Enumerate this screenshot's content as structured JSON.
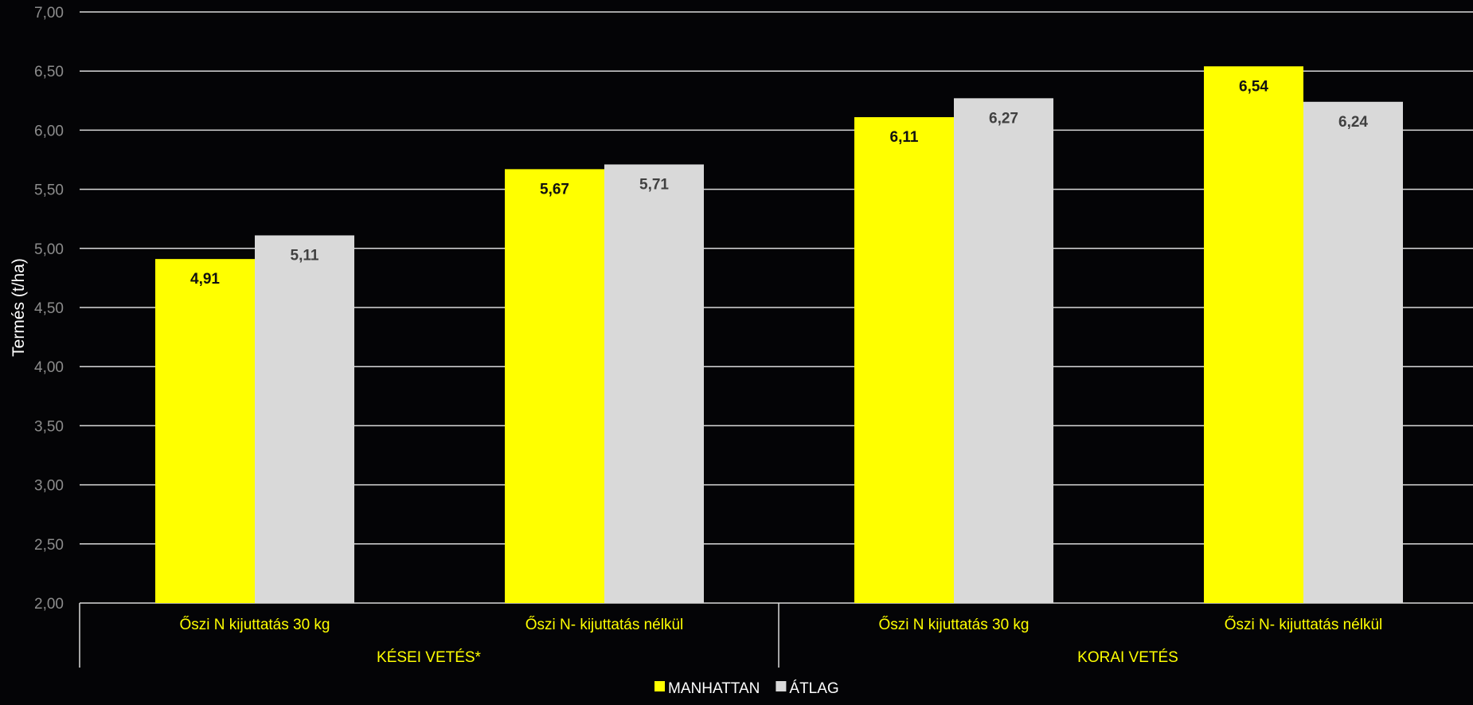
{
  "chart_data": {
    "type": "bar",
    "ylabel": "Termés (t/ha)",
    "ylim": [
      2.0,
      7.0
    ],
    "ytick_step": 0.5,
    "ytick_labels": [
      "2,00",
      "2,50",
      "3,00",
      "3,50",
      "4,00",
      "4,50",
      "5,00",
      "5,50",
      "6,00",
      "6,50",
      "7,00"
    ],
    "grid": true,
    "legend_position": "bottom-center",
    "groups": [
      {
        "label": "KÉSEI VETÉS*",
        "categories": [
          0,
          1
        ]
      },
      {
        "label": "KORAI VETÉS",
        "categories": [
          2,
          3
        ]
      }
    ],
    "categories": [
      "Őszi N kijuttatás 30 kg",
      "Őszi N- kijuttatás nélkül",
      "Őszi N kijuttatás 30 kg",
      "Őszi N- kijuttatás nélkül"
    ],
    "series": [
      {
        "name": "MANHATTAN",
        "color": "#ffff00",
        "label_color": "#111111",
        "values": [
          4.91,
          5.67,
          6.11,
          6.54
        ],
        "labels": [
          "4,91",
          "5,67",
          "6,11",
          "6,54"
        ]
      },
      {
        "name": "ÁTLAG",
        "color": "#d9d9d9",
        "label_color": "#404040",
        "values": [
          5.11,
          5.71,
          6.27,
          6.24
        ],
        "labels": [
          "5,11",
          "5,71",
          "6,27",
          "6,24"
        ]
      }
    ],
    "colors": {
      "background": "#040406",
      "grid": "#d9d9d9",
      "axis_text": "#8c8c8c",
      "category_text": "#ffff00",
      "legend_text": "#ffffff",
      "ylabel_text": "#ffffff"
    }
  }
}
